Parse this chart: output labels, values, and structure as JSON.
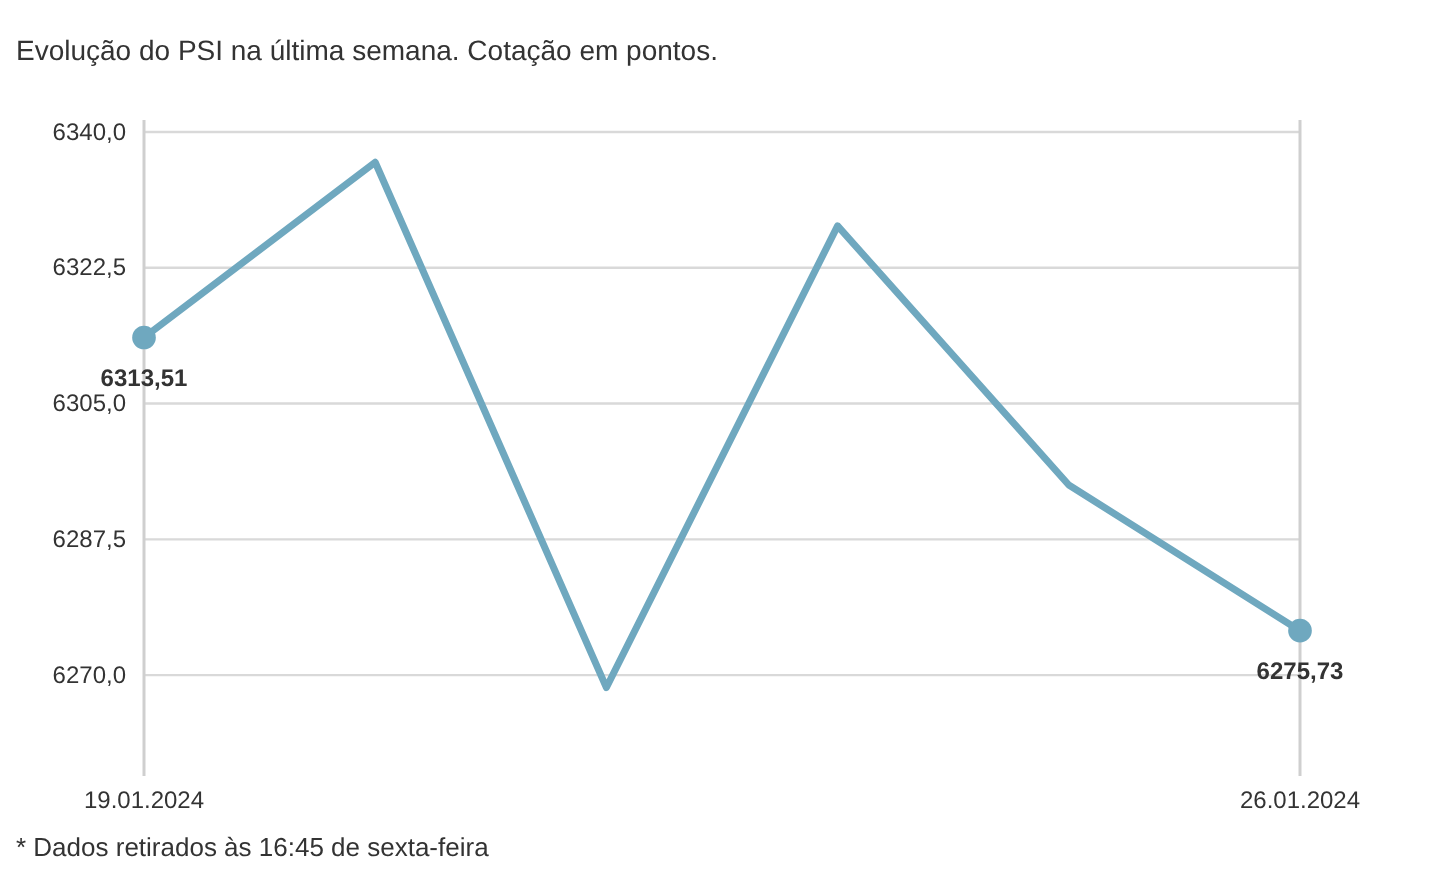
{
  "chart_data": {
    "type": "line",
    "title": "Evolução do PSI na última semana. Cotação em pontos.",
    "categories": [
      "19.01.2024",
      null,
      null,
      null,
      null,
      "26.01.2024"
    ],
    "series": [
      {
        "color": "#6fa8bf",
        "marker": "none",
        "values": [
          6313.51,
          6336.1,
          6268.4,
          6327.9,
          6294.5,
          6275.73
        ],
        "value_labels": [
          "6313,51",
          null,
          null,
          null,
          null,
          "6275,73"
        ]
      },
      {
        "type": "scatter",
        "color": "#6fa8bf",
        "marker": "circle",
        "values": [
          6313.51,
          null,
          null,
          null,
          null,
          6275.73
        ]
      }
    ],
    "ylim": [
      6257,
      6340
    ],
    "yticks": [
      {
        "value": 6270,
        "label": "6270,0"
      },
      {
        "value": 6287.5,
        "label": "6287,5"
      },
      {
        "value": 6305,
        "label": "6305,0"
      },
      {
        "value": 6322.5,
        "label": "6322,5"
      },
      {
        "value": 6340,
        "label": "6340,0"
      }
    ],
    "grid": "y",
    "line_style": "solid",
    "annotations": [
      "* Dados retirados às 16:45 de sexta-feira"
    ]
  }
}
